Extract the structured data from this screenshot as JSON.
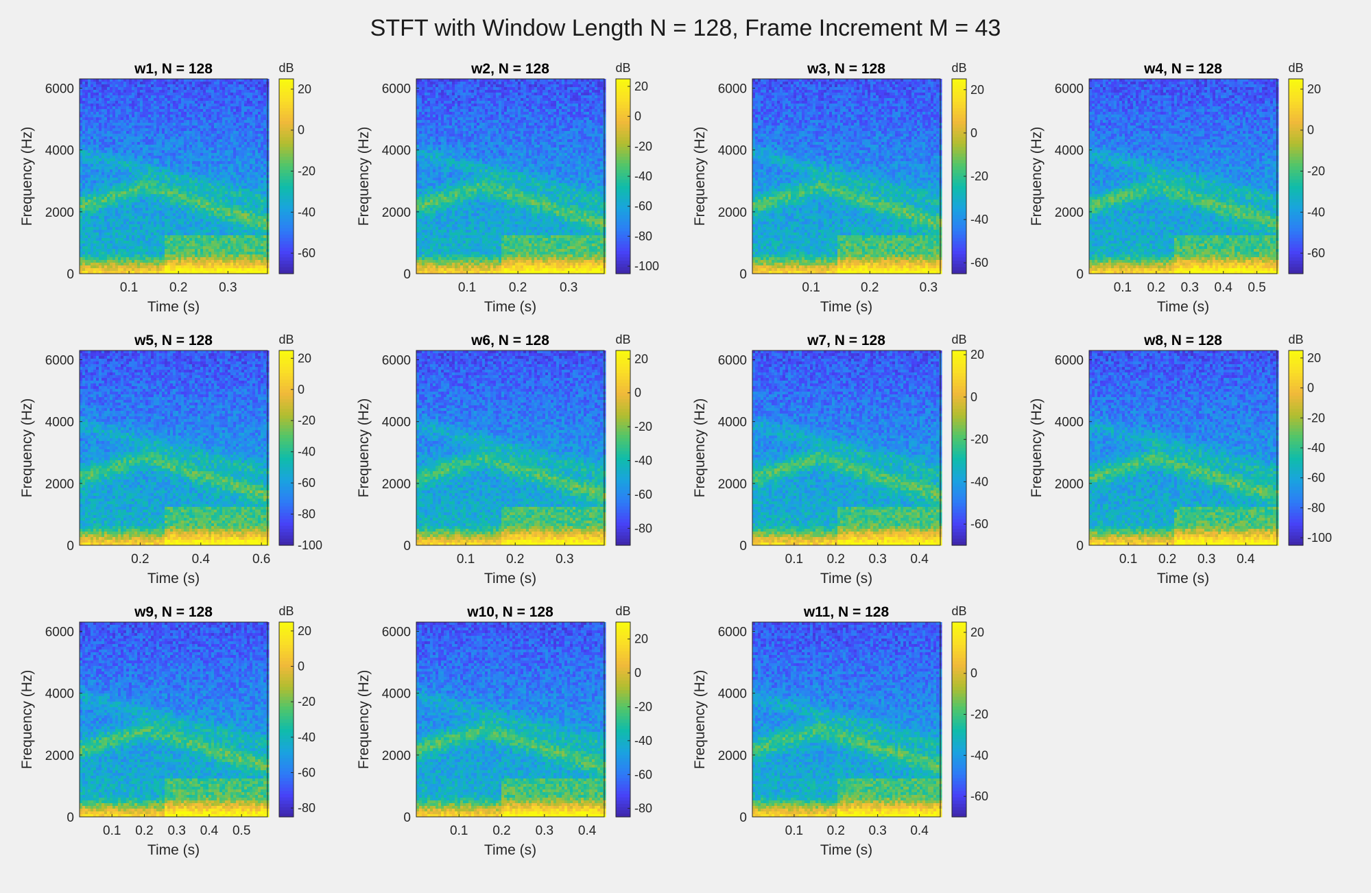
{
  "title": "STFT with Window Length N = 128, Frame Increment M = 43",
  "colorscale": [
    "#3e26a8",
    "#4743f8",
    "#2d7cf6",
    "#1aa3df",
    "#10bcaa",
    "#51c56a",
    "#b2bd30",
    "#f1b93a",
    "#fade27",
    "#f9fb0e"
  ],
  "chart_data": [
    {
      "type": "heatmap",
      "title": "w1, N = 128",
      "xlabel": "Time (s)",
      "ylabel": "Frequency (Hz)",
      "colorbar_label": "dB",
      "xlim": [
        0,
        0.38
      ],
      "ylim": [
        0,
        6300
      ],
      "xticks": [
        0.1,
        0.2,
        0.3
      ],
      "yticks": [
        0,
        2000,
        4000,
        6000
      ],
      "clim": [
        -70,
        25
      ],
      "cticks": [
        20,
        0,
        -20,
        -40,
        -60
      ]
    },
    {
      "type": "heatmap",
      "title": "w2, N = 128",
      "xlabel": "Time (s)",
      "ylabel": "Frequency (Hz)",
      "colorbar_label": "dB",
      "xlim": [
        0,
        0.37
      ],
      "ylim": [
        0,
        6300
      ],
      "xticks": [
        0.1,
        0.2,
        0.3
      ],
      "yticks": [
        0,
        2000,
        4000,
        6000
      ],
      "clim": [
        -105,
        25
      ],
      "cticks": [
        20,
        0,
        -20,
        -40,
        -60,
        -80,
        -100
      ]
    },
    {
      "type": "heatmap",
      "title": "w3, N = 128",
      "xlabel": "Time (s)",
      "ylabel": "Frequency (Hz)",
      "colorbar_label": "dB",
      "xlim": [
        0,
        0.32
      ],
      "ylim": [
        0,
        6300
      ],
      "xticks": [
        0.1,
        0.2,
        0.3
      ],
      "yticks": [
        0,
        2000,
        4000,
        6000
      ],
      "clim": [
        -65,
        25
      ],
      "cticks": [
        20,
        0,
        -20,
        -40,
        -60
      ]
    },
    {
      "type": "heatmap",
      "title": "w4, N = 128",
      "xlabel": "Time (s)",
      "ylabel": "Frequency (Hz)",
      "colorbar_label": "dB",
      "xlim": [
        0,
        0.56
      ],
      "ylim": [
        0,
        6300
      ],
      "xticks": [
        0.1,
        0.2,
        0.3,
        0.4,
        0.5
      ],
      "yticks": [
        0,
        2000,
        4000,
        6000
      ],
      "clim": [
        -70,
        25
      ],
      "cticks": [
        20,
        0,
        -20,
        -40,
        -60
      ]
    },
    {
      "type": "heatmap",
      "title": "w5, N = 128",
      "xlabel": "Time (s)",
      "ylabel": "Frequency (Hz)",
      "colorbar_label": "dB",
      "xlim": [
        0,
        0.62
      ],
      "ylim": [
        0,
        6300
      ],
      "xticks": [
        0.2,
        0.4,
        0.6
      ],
      "yticks": [
        0,
        2000,
        4000,
        6000
      ],
      "clim": [
        -100,
        25
      ],
      "cticks": [
        20,
        0,
        -20,
        -40,
        -60,
        -80,
        -100
      ]
    },
    {
      "type": "heatmap",
      "title": "w6, N = 128",
      "xlabel": "Time (s)",
      "ylabel": "Frequency (Hz)",
      "colorbar_label": "dB",
      "xlim": [
        0,
        0.38
      ],
      "ylim": [
        0,
        6300
      ],
      "xticks": [
        0.1,
        0.2,
        0.3
      ],
      "yticks": [
        0,
        2000,
        4000,
        6000
      ],
      "clim": [
        -90,
        25
      ],
      "cticks": [
        20,
        0,
        -20,
        -40,
        -60,
        -80
      ]
    },
    {
      "type": "heatmap",
      "title": "w7, N = 128",
      "xlabel": "Time (s)",
      "ylabel": "Frequency (Hz)",
      "colorbar_label": "dB",
      "xlim": [
        0,
        0.45
      ],
      "ylim": [
        0,
        6300
      ],
      "xticks": [
        0.1,
        0.2,
        0.3,
        0.4
      ],
      "yticks": [
        0,
        2000,
        4000,
        6000
      ],
      "clim": [
        -70,
        22
      ],
      "cticks": [
        20,
        0,
        -20,
        -40,
        -60
      ]
    },
    {
      "type": "heatmap",
      "title": "w8, N = 128",
      "xlabel": "Time (s)",
      "ylabel": "Frequency (Hz)",
      "colorbar_label": "dB",
      "xlim": [
        0,
        0.48
      ],
      "ylim": [
        0,
        6300
      ],
      "xticks": [
        0.1,
        0.2,
        0.3,
        0.4
      ],
      "yticks": [
        0,
        2000,
        4000,
        6000
      ],
      "clim": [
        -105,
        25
      ],
      "cticks": [
        20,
        0,
        -20,
        -40,
        -60,
        -80,
        -100
      ]
    },
    {
      "type": "heatmap",
      "title": "w9, N = 128",
      "xlabel": "Time (s)",
      "ylabel": "Frequency (Hz)",
      "colorbar_label": "dB",
      "xlim": [
        0,
        0.58
      ],
      "ylim": [
        0,
        6300
      ],
      "xticks": [
        0.1,
        0.2,
        0.3,
        0.4,
        0.5
      ],
      "yticks": [
        0,
        2000,
        4000,
        6000
      ],
      "clim": [
        -85,
        25
      ],
      "cticks": [
        20,
        0,
        -20,
        -40,
        -60,
        -80
      ]
    },
    {
      "type": "heatmap",
      "title": "w10, N = 128",
      "xlabel": "Time (s)",
      "ylabel": "Frequency (Hz)",
      "colorbar_label": "dB",
      "xlim": [
        0,
        0.44
      ],
      "ylim": [
        0,
        6300
      ],
      "xticks": [
        0.1,
        0.2,
        0.3,
        0.4
      ],
      "yticks": [
        0,
        2000,
        4000,
        6000
      ],
      "clim": [
        -85,
        30
      ],
      "cticks": [
        20,
        0,
        -20,
        -40,
        -60,
        -80
      ]
    },
    {
      "type": "heatmap",
      "title": "w11, N = 128",
      "xlabel": "Time (s)",
      "ylabel": "Frequency (Hz)",
      "colorbar_label": "dB",
      "xlim": [
        0,
        0.45
      ],
      "ylim": [
        0,
        6300
      ],
      "xticks": [
        0.1,
        0.2,
        0.3,
        0.4
      ],
      "yticks": [
        0,
        2000,
        4000,
        6000
      ],
      "clim": [
        -70,
        25
      ],
      "cticks": [
        20,
        0,
        -20,
        -40,
        -60
      ]
    }
  ]
}
